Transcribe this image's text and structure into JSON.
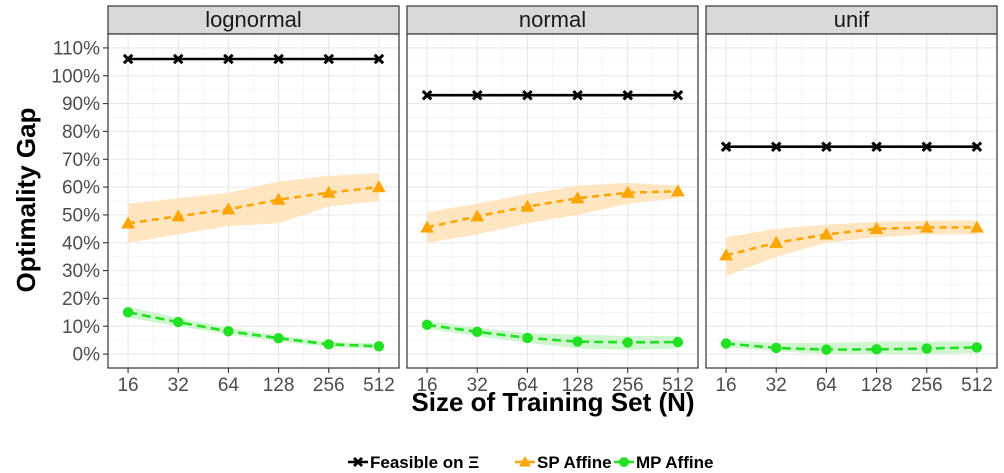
{
  "chart_data": {
    "type": "line",
    "facet_by": "distribution",
    "x_scale": "log2",
    "categories": [
      "16",
      "32",
      "64",
      "128",
      "256",
      "512"
    ],
    "x": [
      16,
      32,
      64,
      128,
      256,
      512
    ],
    "xlabel": "Size of Training Set (N)",
    "ylabel": "Optimality Gap",
    "ylim": [
      -0.05,
      1.15
    ],
    "y_ticks": [
      "0%",
      "10%",
      "20%",
      "30%",
      "40%",
      "50%",
      "60%",
      "70%",
      "80%",
      "90%",
      "100%",
      "110%"
    ],
    "grid": true,
    "legend_position": "bottom",
    "legend": [
      "Feasible on Ξ",
      "SP Affine",
      "MP Affine"
    ],
    "colors": {
      "feasible": "#000000",
      "sp": "#FFA500",
      "mp": "#22E022"
    },
    "panels": [
      {
        "title": "lognormal",
        "series": [
          {
            "name": "Feasible on Ξ",
            "key": "feasible",
            "values": [
              1.06,
              1.06,
              1.06,
              1.06,
              1.06,
              1.06
            ]
          },
          {
            "name": "SP Affine",
            "key": "sp",
            "values": [
              0.47,
              0.495,
              0.52,
              0.555,
              0.58,
              0.6
            ],
            "lower": [
              0.4,
              0.43,
              0.46,
              0.47,
              0.53,
              0.55
            ],
            "upper": [
              0.54,
              0.56,
              0.58,
              0.62,
              0.64,
              0.65
            ]
          },
          {
            "name": "MP Affine",
            "key": "mp",
            "values": [
              0.15,
              0.115,
              0.082,
              0.057,
              0.035,
              0.028
            ],
            "lower": [
              0.13,
              0.1,
              0.07,
              0.045,
              0.025,
              0.018
            ],
            "upper": [
              0.17,
              0.13,
              0.095,
              0.068,
              0.045,
              0.038
            ]
          }
        ]
      },
      {
        "title": "normal",
        "series": [
          {
            "name": "Feasible on Ξ",
            "key": "feasible",
            "values": [
              0.93,
              0.93,
              0.93,
              0.93,
              0.93,
              0.93
            ]
          },
          {
            "name": "SP Affine",
            "key": "sp",
            "values": [
              0.455,
              0.495,
              0.53,
              0.56,
              0.58,
              0.585
            ],
            "lower": [
              0.4,
              0.43,
              0.47,
              0.5,
              0.54,
              0.56
            ],
            "upper": [
              0.51,
              0.54,
              0.575,
              0.605,
              0.615,
              0.605
            ]
          },
          {
            "name": "MP Affine",
            "key": "mp",
            "values": [
              0.105,
              0.08,
              0.058,
              0.045,
              0.042,
              0.043
            ],
            "lower": [
              0.09,
              0.065,
              0.04,
              0.02,
              0.015,
              0.02
            ],
            "upper": [
              0.12,
              0.095,
              0.075,
              0.07,
              0.065,
              0.065
            ]
          }
        ]
      },
      {
        "title": "unif",
        "series": [
          {
            "name": "Feasible on Ξ",
            "key": "feasible",
            "values": [
              0.745,
              0.745,
              0.745,
              0.745,
              0.745,
              0.745
            ]
          },
          {
            "name": "SP Affine",
            "key": "sp",
            "values": [
              0.355,
              0.4,
              0.43,
              0.45,
              0.455,
              0.455
            ],
            "lower": [
              0.28,
              0.35,
              0.4,
              0.42,
              0.43,
              0.43
            ],
            "upper": [
              0.42,
              0.45,
              0.465,
              0.475,
              0.48,
              0.48
            ]
          },
          {
            "name": "MP Affine",
            "key": "mp",
            "values": [
              0.038,
              0.022,
              0.016,
              0.017,
              0.02,
              0.024
            ],
            "lower": [
              0.025,
              0.01,
              0.0,
              0.0,
              0.0,
              0.005
            ],
            "upper": [
              0.05,
              0.04,
              0.04,
              0.045,
              0.045,
              0.045
            ]
          }
        ]
      }
    ]
  }
}
